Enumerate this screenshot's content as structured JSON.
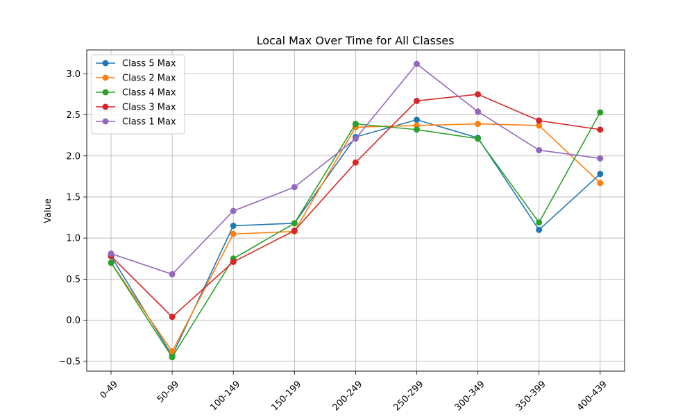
{
  "chart_data": {
    "type": "line",
    "title": "Local Max Over Time for All Classes",
    "xlabel": "",
    "ylabel": "Value",
    "categories": [
      "0-49",
      "50-99",
      "100-149",
      "150-199",
      "200-249",
      "250-299",
      "300-349",
      "350-399",
      "400-439"
    ],
    "ylim": [
      -0.62,
      3.29
    ],
    "yticks": [
      {
        "value": -0.5,
        "label": "−0.5"
      },
      {
        "value": 0.0,
        "label": "0.0"
      },
      {
        "value": 0.5,
        "label": "0.5"
      },
      {
        "value": 1.0,
        "label": "1.0"
      },
      {
        "value": 1.5,
        "label": "1.5"
      },
      {
        "value": 2.0,
        "label": "2.0"
      },
      {
        "value": 2.5,
        "label": "2.5"
      },
      {
        "value": 3.0,
        "label": "3.0"
      }
    ],
    "grid": true,
    "legend_position": "top-left",
    "series": [
      {
        "name": "Class 5 Max",
        "color": "#1f77b4",
        "values": [
          0.78,
          -0.43,
          1.15,
          1.18,
          2.23,
          2.44,
          2.22,
          1.1,
          1.78
        ]
      },
      {
        "name": "Class 2 Max",
        "color": "#ff7f0e",
        "values": [
          0.7,
          -0.38,
          1.05,
          1.08,
          2.35,
          2.37,
          2.39,
          2.37,
          1.67
        ]
      },
      {
        "name": "Class 4 Max",
        "color": "#2ca02c",
        "values": [
          0.7,
          -0.45,
          0.75,
          1.18,
          2.39,
          2.32,
          2.21,
          1.19,
          2.53
        ]
      },
      {
        "name": "Class 3 Max",
        "color": "#d62728",
        "values": [
          0.78,
          0.04,
          0.71,
          1.09,
          1.92,
          2.67,
          2.75,
          2.43,
          2.32
        ]
      },
      {
        "name": "Class 1 Max",
        "color": "#9467bd",
        "values": [
          0.81,
          0.56,
          1.33,
          1.62,
          2.21,
          3.12,
          2.54,
          2.07,
          1.97
        ]
      }
    ]
  }
}
